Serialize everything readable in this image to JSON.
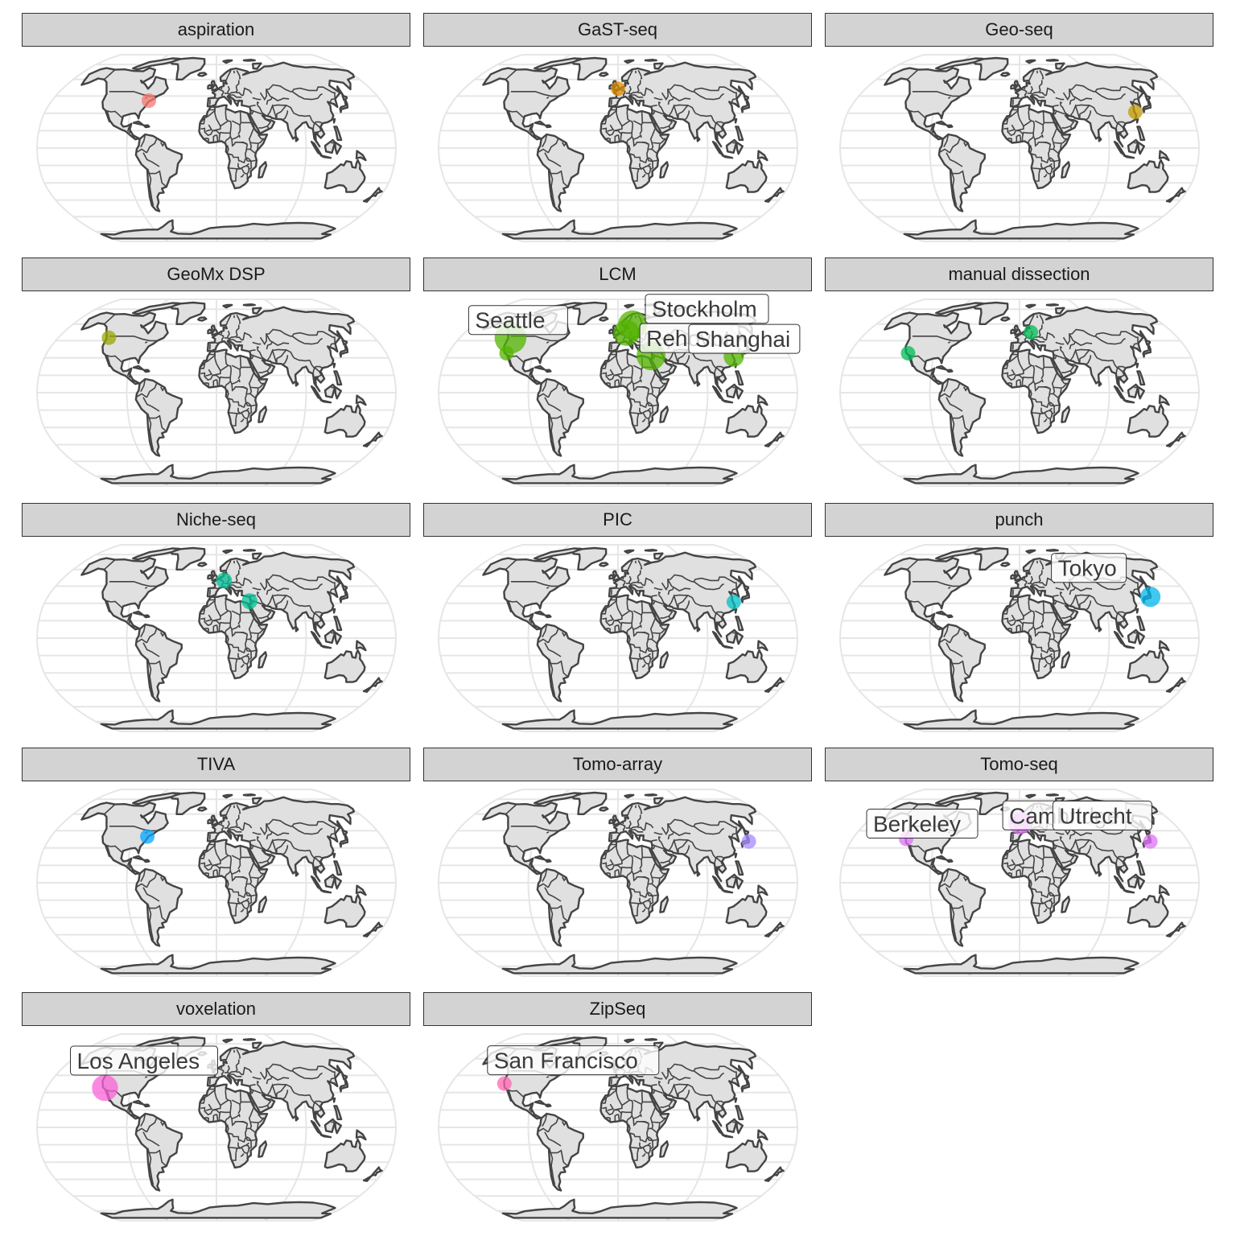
{
  "map_data": {
    "type": "faceted_world_map",
    "projection": "Robinson",
    "panels": [
      {
        "method": "aspiration",
        "sites": [
          {
            "name": "",
            "lon": -74,
            "lat": 41,
            "color": "#F8766D",
            "size": 1
          }
        ],
        "labels": []
      },
      {
        "method": "GaST-seq",
        "sites": [
          {
            "name": "",
            "lon": 0,
            "lat": 51.5,
            "color": "#DE8C00",
            "size": 1
          }
        ],
        "labels": []
      },
      {
        "method": "Geo-seq",
        "sites": [
          {
            "name": "",
            "lon": 121.5,
            "lat": 31.2,
            "color": "#C49A00",
            "size": 1
          }
        ],
        "labels": []
      },
      {
        "method": "GeoMx DSP",
        "sites": [
          {
            "name": "",
            "lon": -122.3,
            "lat": 47.6,
            "color": "#99A800",
            "size": 1
          }
        ],
        "labels": []
      },
      {
        "method": "LCM",
        "sites": [
          {
            "name": "Seattle",
            "lon": -122.3,
            "lat": 47.6,
            "color": "#53B400",
            "size": 2.2
          },
          {
            "name": "",
            "lon": -118.2,
            "lat": 34.1,
            "color": "#53B400",
            "size": 1
          },
          {
            "name": "Stockholm",
            "lon": 18.1,
            "lat": 59.3,
            "color": "#53B400",
            "size": 2
          },
          {
            "name": "",
            "lon": 10,
            "lat": 52,
            "color": "#53B400",
            "size": 1.8
          },
          {
            "name": "Rehovot",
            "lon": 34.8,
            "lat": 31.9,
            "color": "#53B400",
            "size": 2
          },
          {
            "name": "Shanghai",
            "lon": 121.5,
            "lat": 31.2,
            "color": "#53B400",
            "size": 1.4
          }
        ],
        "labels": [
          "Seattle",
          "Stockholm",
          "Rehovot",
          "Shanghai"
        ]
      },
      {
        "method": "manual dissection",
        "sites": [
          {
            "name": "",
            "lon": -118.2,
            "lat": 34.1,
            "color": "#00BC56",
            "size": 1
          },
          {
            "name": "",
            "lon": 13.4,
            "lat": 52.5,
            "color": "#00BC56",
            "size": 1
          }
        ],
        "labels": []
      },
      {
        "method": "Niche-seq",
        "sites": [
          {
            "name": "",
            "lon": 8.7,
            "lat": 50,
            "color": "#00C094",
            "size": 1.1
          },
          {
            "name": "",
            "lon": 34.8,
            "lat": 31.9,
            "color": "#00C094",
            "size": 1.1
          }
        ],
        "labels": []
      },
      {
        "method": "PIC",
        "sites": [
          {
            "name": "",
            "lon": 121.5,
            "lat": 31.2,
            "color": "#00BFC4",
            "size": 1
          }
        ],
        "labels": []
      },
      {
        "method": "punch",
        "sites": [
          {
            "name": "Tokyo",
            "lon": 139.7,
            "lat": 35.7,
            "color": "#00B6EB",
            "size": 1.4
          }
        ],
        "labels": [
          "Tokyo"
        ]
      },
      {
        "method": "TIVA",
        "sites": [
          {
            "name": "",
            "lon": -75.2,
            "lat": 39.9,
            "color": "#06A4FF",
            "size": 1
          }
        ],
        "labels": []
      },
      {
        "method": "Tomo-array",
        "sites": [
          {
            "name": "",
            "lon": 139.7,
            "lat": 35.7,
            "color": "#A58AFF",
            "size": 1
          }
        ],
        "labels": []
      },
      {
        "method": "Tomo-seq",
        "sites": [
          {
            "name": "Berkeley",
            "lon": -122.3,
            "lat": 37.9,
            "color": "#DF70F8",
            "size": 1
          },
          {
            "name": "Cambridge",
            "lon": 0.1,
            "lat": 52.2,
            "color": "#DF70F8",
            "size": 1.6
          },
          {
            "name": "Utrecht",
            "lon": 5.1,
            "lat": 52.1,
            "color": "#DF70F8",
            "size": 1.3
          },
          {
            "name": "",
            "lon": 139.7,
            "lat": 35.7,
            "color": "#DF70F8",
            "size": 1
          }
        ],
        "labels": [
          "Berkeley",
          "Cambridge",
          "Utrecht"
        ]
      },
      {
        "method": "voxelation",
        "sites": [
          {
            "name": "Los Angeles",
            "lon": -118.2,
            "lat": 34.1,
            "color": "#FB61D7",
            "size": 1.8
          }
        ],
        "labels": [
          "Los Angeles"
        ]
      },
      {
        "method": "ZipSeq",
        "sites": [
          {
            "name": "San Francisco",
            "lon": -122.4,
            "lat": 37.8,
            "color": "#FF65AE",
            "size": 1
          }
        ],
        "labels": [
          "San Francisco"
        ]
      }
    ]
  }
}
